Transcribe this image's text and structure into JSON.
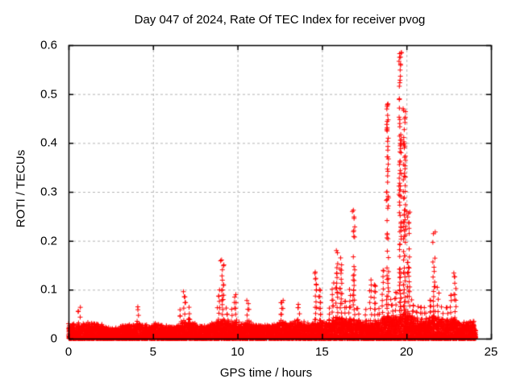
{
  "chart_data": {
    "type": "scatter",
    "title": "Day 047 of 2024, Rate Of TEC Index for receiver pvog",
    "xlabel": "GPS time / hours",
    "ylabel": "ROTI / TECUs",
    "xlim": [
      0,
      25
    ],
    "ylim": [
      0,
      0.6
    ],
    "xtick_labels": [
      "0",
      "5",
      "10",
      "15",
      "20",
      "25"
    ],
    "ytick_labels": [
      "0",
      "0.1",
      "0.2",
      "0.3",
      "0.4",
      "0.5",
      "0.6"
    ],
    "xtick_values": [
      0,
      5,
      10,
      15,
      20,
      25
    ],
    "ytick_values": [
      0,
      0.1,
      0.2,
      0.3,
      0.4,
      0.5,
      0.6
    ],
    "grid": true,
    "legend": "none",
    "marker": "plus",
    "marker_color": "#ff0000",
    "grid_color": "#b4b4b4",
    "axis_color": "#000000",
    "background": "#ffffff",
    "data_extent_hours": [
      0,
      24.1
    ],
    "envelope": {
      "bin_hours": 0.25,
      "note": "base = top of dense low-ROTI band per bin; max = highest marker per bin, both in TECUs",
      "base": [
        0.03,
        0.025,
        0.025,
        0.028,
        0.03,
        0.03,
        0.028,
        0.028,
        0.022,
        0.02,
        0.02,
        0.02,
        0.024,
        0.026,
        0.026,
        0.028,
        0.03,
        0.028,
        0.025,
        0.024,
        0.027,
        0.027,
        0.025,
        0.024,
        0.022,
        0.024,
        0.028,
        0.032,
        0.034,
        0.03,
        0.026,
        0.024,
        0.024,
        0.026,
        0.03,
        0.034,
        0.036,
        0.032,
        0.03,
        0.032,
        0.028,
        0.028,
        0.03,
        0.028,
        0.026,
        0.026,
        0.025,
        0.025,
        0.026,
        0.028,
        0.032,
        0.03,
        0.03,
        0.032,
        0.034,
        0.03,
        0.028,
        0.028,
        0.034,
        0.032,
        0.03,
        0.032,
        0.038,
        0.042,
        0.04,
        0.035,
        0.035,
        0.036,
        0.032,
        0.03,
        0.03,
        0.032,
        0.03,
        0.032,
        0.038,
        0.045,
        0.04,
        0.042,
        0.05,
        0.052,
        0.045,
        0.04,
        0.038,
        0.035,
        0.035,
        0.038,
        0.045,
        0.04,
        0.035,
        0.034,
        0.036,
        0.038,
        0.03,
        0.03,
        0.032,
        0.034
      ],
      "max": [
        0.052,
        0.04,
        0.065,
        0.048,
        0.05,
        0.052,
        0.045,
        0.042,
        0.035,
        0.032,
        0.03,
        0.032,
        0.038,
        0.04,
        0.042,
        0.048,
        0.065,
        0.048,
        0.04,
        0.038,
        0.045,
        0.042,
        0.038,
        0.036,
        0.034,
        0.038,
        0.06,
        0.096,
        0.065,
        0.05,
        0.042,
        0.038,
        0.038,
        0.042,
        0.05,
        0.11,
        0.16,
        0.07,
        0.065,
        0.09,
        0.05,
        0.052,
        0.078,
        0.048,
        0.042,
        0.04,
        0.038,
        0.04,
        0.042,
        0.045,
        0.078,
        0.055,
        0.052,
        0.062,
        0.07,
        0.055,
        0.048,
        0.05,
        0.136,
        0.1,
        0.06,
        0.065,
        0.12,
        0.18,
        0.165,
        0.08,
        0.1,
        0.26,
        0.07,
        0.06,
        0.065,
        0.12,
        0.11,
        0.07,
        0.15,
        0.48,
        0.09,
        0.1,
        0.585,
        0.47,
        0.26,
        0.09,
        0.075,
        0.07,
        0.075,
        0.09,
        0.218,
        0.11,
        0.07,
        0.075,
        0.1,
        0.134,
        0.055,
        0.052,
        0.058,
        0.06
      ]
    },
    "peaks": [
      {
        "hour": 0.7,
        "value": 0.064
      },
      {
        "hour": 4.1,
        "value": 0.065
      },
      {
        "hour": 6.8,
        "value": 0.096
      },
      {
        "hour": 9.0,
        "value": 0.159
      },
      {
        "hour": 9.9,
        "value": 0.09
      },
      {
        "hour": 10.55,
        "value": 0.078
      },
      {
        "hour": 12.7,
        "value": 0.078
      },
      {
        "hour": 13.6,
        "value": 0.07
      },
      {
        "hour": 14.6,
        "value": 0.136
      },
      {
        "hour": 14.85,
        "value": 0.1
      },
      {
        "hour": 15.85,
        "value": 0.18
      },
      {
        "hour": 16.1,
        "value": 0.165
      },
      {
        "hour": 16.8,
        "value": 0.26
      },
      {
        "hour": 17.9,
        "value": 0.12
      },
      {
        "hour": 18.1,
        "value": 0.11
      },
      {
        "hour": 18.9,
        "value": 0.48
      },
      {
        "hour": 19.7,
        "value": 0.585
      },
      {
        "hour": 19.8,
        "value": 0.47
      },
      {
        "hour": 20.0,
        "value": 0.26
      },
      {
        "hour": 21.7,
        "value": 0.218
      },
      {
        "hour": 22.8,
        "value": 0.134
      }
    ]
  }
}
